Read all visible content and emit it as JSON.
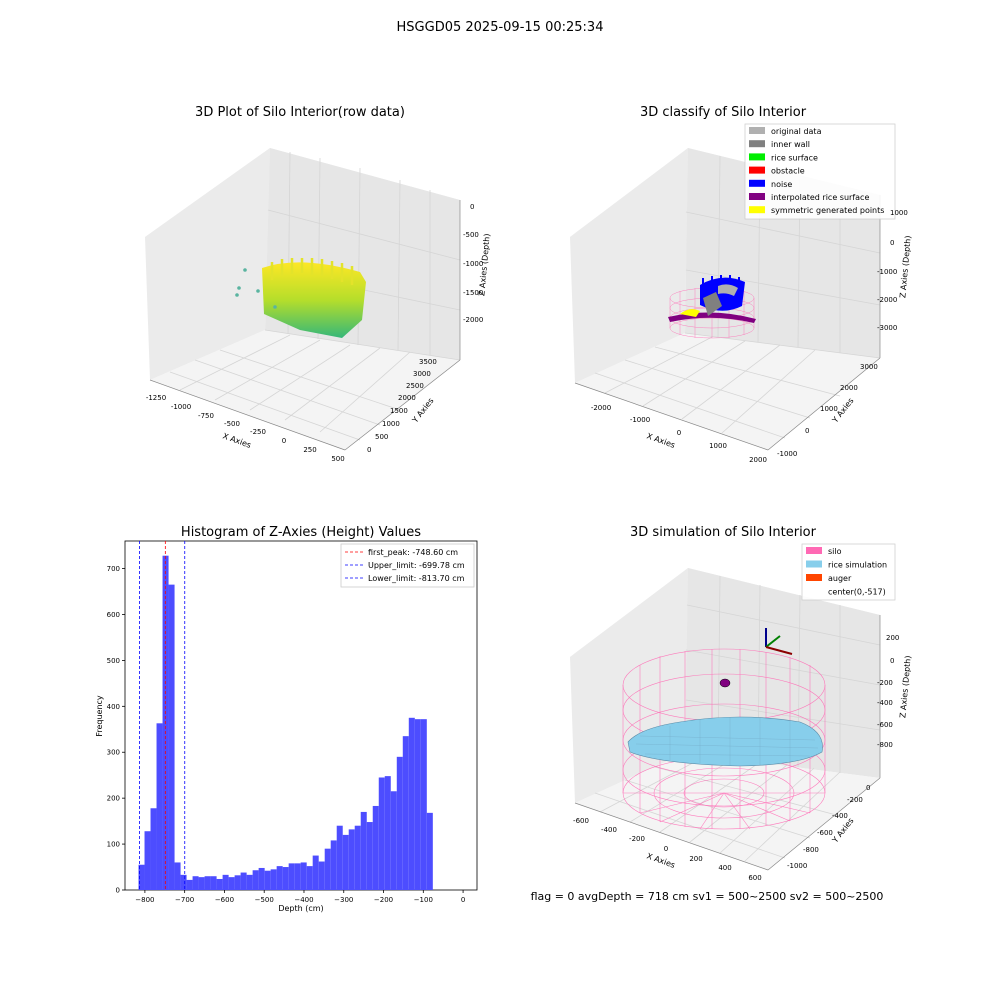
{
  "figure": {
    "suptitle": "HSGGD05 2025-09-15 00:25:34",
    "status_line": "flag = 0     avgDepth = 718 cm  sv1 = 500~2500  sv2 = 500~2500"
  },
  "chart_data": [
    {
      "type": "scatter",
      "title": "3D Plot of Silo Interior(row data)",
      "xlabel": "X Axies",
      "ylabel": "Y Axies",
      "zlabel": "Z Axies (Depth)",
      "x_ticks": [
        "-1250",
        "-1000",
        "-750",
        "-500",
        "-250",
        "0",
        "250",
        "500"
      ],
      "y_ticks": [
        "0",
        "500",
        "1000",
        "1500",
        "2000",
        "2500",
        "3000",
        "3500"
      ],
      "z_ticks": [
        "-2000",
        "-1500",
        "-1000",
        "-500",
        "0"
      ],
      "colormap": "viridis",
      "colors": {
        "low": "#35b779",
        "high": "#fde725"
      }
    },
    {
      "type": "scatter",
      "title": "3D classify of Silo Interior",
      "xlabel": "X Axies",
      "ylabel": "Y Axies",
      "zlabel": "Z Axies (Depth)",
      "x_ticks": [
        "-2000",
        "-1000",
        "0",
        "1000",
        "2000"
      ],
      "y_ticks": [
        "-1000",
        "0",
        "1000",
        "2000",
        "3000"
      ],
      "z_ticks": [
        "-3000",
        "-2000",
        "-1000",
        "0",
        "1000"
      ],
      "legend_position": "top-right",
      "series": [
        {
          "name": "original data",
          "color": "#b0b0b0"
        },
        {
          "name": "inner wall",
          "color": "#808080"
        },
        {
          "name": "rice surface",
          "color": "#00ee00"
        },
        {
          "name": "obstacle",
          "color": "#ff0000"
        },
        {
          "name": "noise",
          "color": "#0000ff"
        },
        {
          "name": "interpolated rice surface",
          "color": "#800080"
        },
        {
          "name": "symmetric generated points",
          "color": "#ffff00"
        }
      ]
    },
    {
      "type": "bar",
      "title": "Histogram of Z-Axies (Height) Values",
      "xlabel": "Depth (cm)",
      "ylabel": "Frequency",
      "xlim": [
        -850,
        35
      ],
      "ylim": [
        0,
        760
      ],
      "x_ticks": [
        -800,
        -700,
        -600,
        -500,
        -400,
        -300,
        -200,
        -100,
        0
      ],
      "y_ticks": [
        0,
        100,
        200,
        300,
        400,
        500,
        600,
        700
      ],
      "bar_color": "#4d4dff",
      "bin_start": -816,
      "bin_width": 15.1,
      "values": [
        55,
        128,
        178,
        363,
        728,
        665,
        60,
        33,
        22,
        30,
        28,
        30,
        30,
        24,
        33,
        28,
        32,
        38,
        33,
        43,
        48,
        42,
        45,
        52,
        50,
        58,
        58,
        60,
        52,
        75,
        62,
        90,
        108,
        140,
        120,
        132,
        140,
        170,
        148,
        183,
        245,
        248,
        215,
        290,
        335,
        375,
        372,
        372,
        168
      ],
      "vlines": [
        {
          "name": "first_peak: -748.60 cm",
          "x": -748.6,
          "color": "#ff0000"
        },
        {
          "name": "Upper_limit: -699.78 cm",
          "x": -699.78,
          "color": "#0000ff"
        },
        {
          "name": "Lower_limit: -813.70 cm",
          "x": -813.7,
          "color": "#0000ff"
        }
      ],
      "legend_position": "top-right"
    },
    {
      "type": "scatter",
      "title": "3D simulation of Silo Interior",
      "xlabel": "X Axies",
      "ylabel": "Y Axies",
      "zlabel": "Z Axies (Depth)",
      "x_ticks": [
        "-600",
        "-400",
        "-200",
        "0",
        "200",
        "400",
        "600"
      ],
      "y_ticks": [
        "-1000",
        "-800",
        "-600",
        "-400",
        "-200",
        "0"
      ],
      "z_ticks": [
        "-800",
        "-600",
        "-400",
        "-200",
        "0",
        "200"
      ],
      "legend_position": "top-right",
      "series": [
        {
          "name": "silo",
          "color": "#ff69b4"
        },
        {
          "name": "rice simulation",
          "color": "#87ceeb"
        },
        {
          "name": "auger",
          "color": "#ff4500"
        },
        {
          "name": "center(0,-517)",
          "color": "#ffffff"
        }
      ]
    }
  ]
}
